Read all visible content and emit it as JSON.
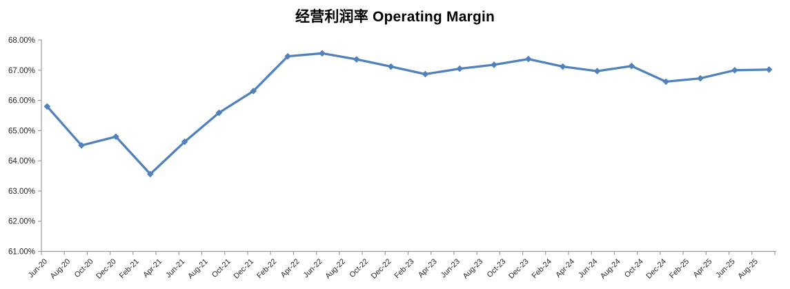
{
  "chart_data": {
    "type": "line",
    "title": "经营利润率 Operating Margin",
    "xlabel": "",
    "ylabel": "",
    "legend": "none",
    "grid": "off",
    "background": "#ffffff",
    "colors": {
      "series_line": "#4F81BD",
      "marker": "#4F81BD",
      "axis_line": "#9b9b9b",
      "tick_label": "#262626",
      "title": "#000000"
    },
    "y_axis": {
      "min": 61,
      "max": 68,
      "step": 1,
      "format": "percent_2dp",
      "tick_labels": [
        "68.00%",
        "67.00%",
        "66.00%",
        "65.00%",
        "64.00%",
        "63.00%",
        "62.00%",
        "61.00%"
      ]
    },
    "x_axis": {
      "type": "date",
      "start": "Jun-20",
      "end_tick": "Oct-25",
      "total_months": 64,
      "tick_interval_months": 2,
      "label_rotation_deg": 45,
      "tick_labels": [
        "Jun-20",
        "Aug-20",
        "Oct-20",
        "Dec-20",
        "Feb-21",
        "Apr-21",
        "Jun-21",
        "Aug-21",
        "Oct-21",
        "Dec-21",
        "Feb-22",
        "Apr-22",
        "Jun-22",
        "Aug-22",
        "Oct-22",
        "Dec-22",
        "Feb-23",
        "Apr-23",
        "Jun-23",
        "Aug-23",
        "Oct-23",
        "Dec-23",
        "Feb-24",
        "Apr-24",
        "Jun-24",
        "Aug-24",
        "Oct-24",
        "Dec-24",
        "Feb-25",
        "Apr-25",
        "Jun-25",
        "Aug-25"
      ]
    },
    "series": [
      {
        "name": "Operating Margin",
        "marker": "diamond",
        "points": [
          {
            "label": "Jun-20",
            "month": 0,
            "value": 65.8
          },
          {
            "label": "Sep-20",
            "month": 3,
            "value": 64.51
          },
          {
            "label": "Dec-20",
            "month": 6,
            "value": 64.8
          },
          {
            "label": "Mar-21",
            "month": 9,
            "value": 63.56
          },
          {
            "label": "Jun-21",
            "month": 12,
            "value": 64.63
          },
          {
            "label": "Sep-21",
            "month": 15,
            "value": 65.59
          },
          {
            "label": "Dec-21",
            "month": 18,
            "value": 66.31
          },
          {
            "label": "Mar-22",
            "month": 21,
            "value": 67.46
          },
          {
            "label": "Jun-22",
            "month": 24,
            "value": 67.56
          },
          {
            "label": "Sep-22",
            "month": 27,
            "value": 67.36
          },
          {
            "label": "Dec-22",
            "month": 30,
            "value": 67.12
          },
          {
            "label": "Mar-23",
            "month": 33,
            "value": 66.87
          },
          {
            "label": "Jun-23",
            "month": 36,
            "value": 67.05
          },
          {
            "label": "Sep-23",
            "month": 39,
            "value": 67.18
          },
          {
            "label": "Dec-23",
            "month": 42,
            "value": 67.37
          },
          {
            "label": "Mar-24",
            "month": 45,
            "value": 67.12
          },
          {
            "label": "Jun-24",
            "month": 48,
            "value": 66.97
          },
          {
            "label": "Sep-24",
            "month": 51,
            "value": 67.14
          },
          {
            "label": "Dec-24",
            "month": 54,
            "value": 66.62
          },
          {
            "label": "Mar-25",
            "month": 57,
            "value": 66.73
          },
          {
            "label": "Jun-25",
            "month": 60,
            "value": 67.0
          },
          {
            "label": "Sep-25",
            "month": 63,
            "value": 67.02
          }
        ]
      }
    ]
  }
}
